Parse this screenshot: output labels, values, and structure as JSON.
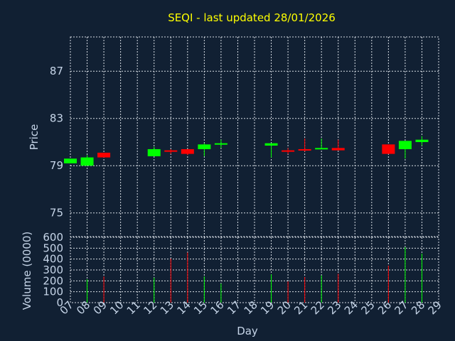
{
  "chart_data": [
    {
      "type": "candlestick",
      "title": "SEQI - last updated 28/01/2026",
      "ylabel": "Price",
      "yticks": [
        75,
        79,
        83,
        87
      ],
      "ylim": [
        73.0,
        89.9
      ],
      "xlabel": "Day",
      "days": [
        "07",
        "08",
        "09",
        "10",
        "11",
        "12",
        "13",
        "14",
        "15",
        "16",
        "17",
        "18",
        "19",
        "20",
        "21",
        "22",
        "23",
        "24",
        "25",
        "26",
        "27",
        "28",
        "29"
      ],
      "up_color": "#00ff00",
      "down_color": "#ff0000",
      "grid": true,
      "candles": [
        {
          "day": "07",
          "open": 79.2,
          "close": 79.6,
          "high": 79.6,
          "low": 79.2
        },
        {
          "day": "08",
          "open": 79.0,
          "close": 79.7,
          "high": 79.9,
          "low": 79.0
        },
        {
          "day": "09",
          "open": 80.1,
          "close": 79.7,
          "high": 80.1,
          "low": 79.7
        },
        {
          "day": "12",
          "open": 79.8,
          "close": 80.4,
          "high": 80.6,
          "low": 79.8
        },
        {
          "day": "13",
          "open": 80.3,
          "close": 80.2,
          "high": 80.4,
          "low": 80.0
        },
        {
          "day": "14",
          "open": 80.4,
          "close": 80.0,
          "high": 80.4,
          "low": 79.9
        },
        {
          "day": "15",
          "open": 80.4,
          "close": 80.8,
          "high": 80.9,
          "low": 79.8
        },
        {
          "day": "16",
          "open": 80.8,
          "close": 80.9,
          "high": 81.2,
          "low": 80.5
        },
        {
          "day": "19",
          "open": 80.7,
          "close": 80.9,
          "high": 80.9,
          "low": 79.7
        },
        {
          "day": "20",
          "open": 80.3,
          "close": 80.2,
          "high": 80.5,
          "low": 80.0
        },
        {
          "day": "21",
          "open": 80.4,
          "close": 80.3,
          "high": 81.3,
          "low": 80.2
        },
        {
          "day": "22",
          "open": 80.4,
          "close": 80.5,
          "high": 81.3,
          "low": 80.4
        },
        {
          "day": "23",
          "open": 80.5,
          "close": 80.3,
          "high": 81.2,
          "low": 80.3
        },
        {
          "day": "26",
          "open": 80.8,
          "close": 80.0,
          "high": 80.8,
          "low": 80.0
        },
        {
          "day": "27",
          "open": 80.4,
          "close": 81.1,
          "high": 81.1,
          "low": 79.6
        },
        {
          "day": "28",
          "open": 81.0,
          "close": 81.2,
          "high": 81.5,
          "low": 80.7
        }
      ]
    },
    {
      "type": "bar",
      "ylabel": "Volume (0000)",
      "yticks": [
        0,
        100,
        200,
        300,
        400,
        500,
        600
      ],
      "ylim": [
        0,
        600
      ],
      "volumes": [
        {
          "day": "08",
          "value": 215,
          "color": "#00ff00"
        },
        {
          "day": "09",
          "value": 240,
          "color": "#ff0000"
        },
        {
          "day": "12",
          "value": 230,
          "color": "#00ff00"
        },
        {
          "day": "13",
          "value": 405,
          "color": "#ff0000"
        },
        {
          "day": "14",
          "value": 460,
          "color": "#ff0000"
        },
        {
          "day": "15",
          "value": 240,
          "color": "#00ff00"
        },
        {
          "day": "16",
          "value": 175,
          "color": "#00ff00"
        },
        {
          "day": "19",
          "value": 260,
          "color": "#00ff00"
        },
        {
          "day": "20",
          "value": 195,
          "color": "#ff0000"
        },
        {
          "day": "21",
          "value": 235,
          "color": "#ff0000"
        },
        {
          "day": "22",
          "value": 250,
          "color": "#00ff00"
        },
        {
          "day": "23",
          "value": 265,
          "color": "#ff0000"
        },
        {
          "day": "26",
          "value": 340,
          "color": "#ff0000"
        },
        {
          "day": "27",
          "value": 510,
          "color": "#00ff00"
        },
        {
          "day": "28",
          "value": 450,
          "color": "#00ff00"
        }
      ]
    }
  ]
}
